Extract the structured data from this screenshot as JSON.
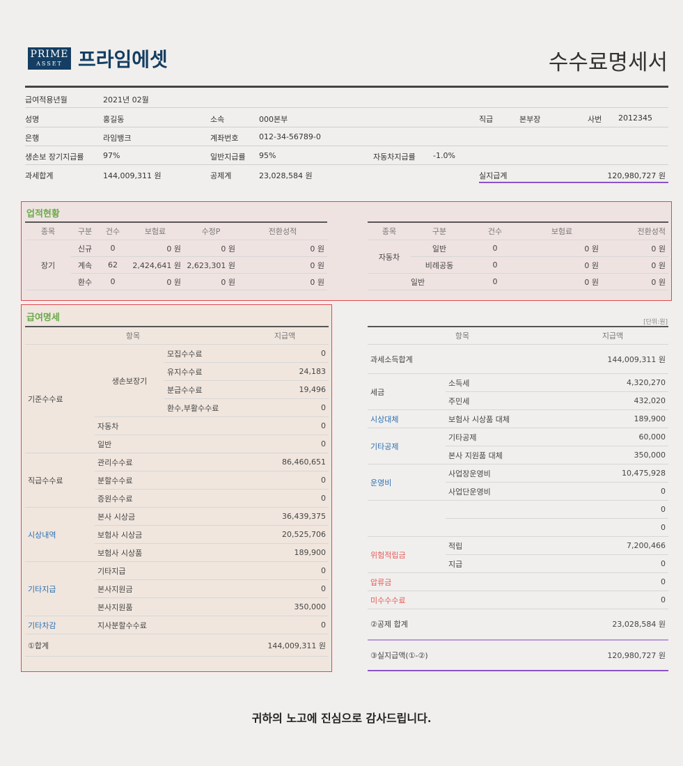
{
  "header": {
    "logo_line1": "PRIME",
    "logo_line2": "ASSET",
    "brand": "프라임에셋",
    "title": "수수료명세서"
  },
  "info": {
    "period_label": "급여적용년월",
    "period": "2021년 02월",
    "name_label": "성명",
    "name": "홍길동",
    "dept_label": "소속",
    "dept": "000본부",
    "rank_label": "직급",
    "rank": "본부장",
    "emp_label": "사번",
    "emp": "2012345",
    "bank_label": "은행",
    "bank": "라임뱅크",
    "account_label": "계좌번호",
    "account": "012-34-56789-0",
    "life_rate_label": "생손보 장기지급률",
    "life_rate": "97%",
    "gen_rate_label": "일반지급률",
    "gen_rate": "95%",
    "car_rate_label": "자동차지급률",
    "car_rate": "-1.0%",
    "taxable_label": "과세합계",
    "taxable": "144,009,311 원",
    "deduct_label": "공제계",
    "deduct": "23,028,584 원",
    "net_label": "실지급계",
    "net": "120,980,727 원"
  },
  "performance": {
    "title": "업적현황",
    "left_headers": [
      "종목",
      "구분",
      "건수",
      "보험료",
      "수정P",
      "전환성적"
    ],
    "left_group": "장기",
    "left_rows": [
      [
        "신규",
        "0",
        "0 원",
        "0 원",
        "0 원"
      ],
      [
        "계속",
        "62",
        "2,424,641 원",
        "2,623,301 원",
        "0 원"
      ],
      [
        "환수",
        "0",
        "0 원",
        "0 원",
        "0 원"
      ]
    ],
    "right_headers": [
      "종목",
      "구분",
      "건수",
      "보험료",
      "전환성적"
    ],
    "right_group": "자동차",
    "right_rows": [
      [
        "일반",
        "0",
        "0 원",
        "0 원"
      ],
      [
        "비례공동",
        "0",
        "0 원",
        "0 원"
      ]
    ],
    "right_last_label": "일반",
    "right_last": [
      "0",
      "0 원",
      "0 원"
    ]
  },
  "salary": {
    "title": "급여명세",
    "h_item": "항목",
    "h_amount": "지급액",
    "g1": "기준수수료",
    "g1_sub": "생손보장기",
    "r_mojip": [
      "모집수수료",
      "0"
    ],
    "r_yuji": [
      "유지수수료",
      "24,183"
    ],
    "r_bungeup": [
      "분급수수료",
      "19,496"
    ],
    "r_hwansu": [
      "환수,부활수수료",
      "0"
    ],
    "r_car": [
      "자동차",
      "0"
    ],
    "r_gen": [
      "일반",
      "0"
    ],
    "g2": "직급수수료",
    "r_gwanri": [
      "관리수수료",
      "86,460,651"
    ],
    "r_bunhal": [
      "분할수수료",
      "0"
    ],
    "r_jeungwon": [
      "증원수수료",
      "0"
    ],
    "g3": "시상내역",
    "r_bonsa": [
      "본사 시상금",
      "36,439,375"
    ],
    "r_bohum": [
      "보험사 시상금",
      "20,525,706"
    ],
    "r_bohum_p": [
      "보험사 시상품",
      "189,900"
    ],
    "g4": "기타지급",
    "r_gita": [
      "기타지급",
      "0"
    ],
    "r_bonsa_w": [
      "본사지원금",
      "0"
    ],
    "r_bonsa_p": [
      "본사지원품",
      "350,000"
    ],
    "g5": "기타차감",
    "r_jisa": [
      "지사분할수수료",
      "0"
    ],
    "total_label": "①합계",
    "total": "144,009,311 원"
  },
  "deduction": {
    "units": "[단위:원]",
    "h_item": "항목",
    "h_amount": "지급액",
    "taxable_label": "과세소득합계",
    "taxable": "144,009,311 원",
    "tax_label": "세금",
    "tax_income": [
      "소득세",
      "4,320,270"
    ],
    "tax_local": [
      "주민세",
      "432,020"
    ],
    "award_label": "시상대체",
    "award": [
      "보험사 시상품 대체",
      "189,900"
    ],
    "etc_label": "기타공제",
    "etc1": [
      "기타공제",
      "60,000"
    ],
    "etc2": [
      "본사 지원품 대체",
      "350,000"
    ],
    "op_label": "운영비",
    "op1": [
      "사업장운영비",
      "10,475,928"
    ],
    "op2": [
      "사업단운영비",
      "0"
    ],
    "blank1": "0",
    "blank2": "0",
    "risk_label": "위험적립금",
    "risk1": [
      "적립",
      "7,200,466"
    ],
    "risk2": [
      "지급",
      "0"
    ],
    "seize_label": "압류금",
    "seize": "0",
    "unpaid_label": "미수수수료",
    "unpaid": "0",
    "ded_total_label": "②공제 합계",
    "ded_total": "23,028,584 원",
    "net_label": "③실지급액(①-②)",
    "net": "120,980,727 원"
  },
  "footer": "귀하의 노고에 진심으로 감사드립니다."
}
